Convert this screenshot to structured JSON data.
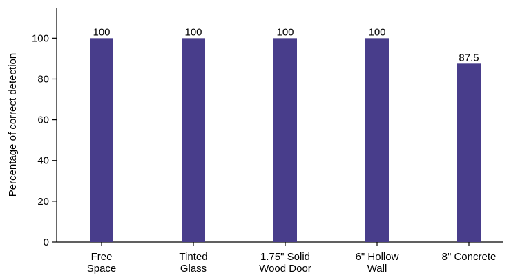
{
  "chart_data": {
    "type": "bar",
    "title": "",
    "xlabel": "",
    "ylabel": "Percentage of correct detection",
    "ylim": [
      0,
      115
    ],
    "yticks": [
      0,
      20,
      40,
      60,
      80,
      100
    ],
    "grid": false,
    "bar_color": "#483d8b",
    "categories": [
      [
        "Free",
        "Space"
      ],
      [
        "Tinted",
        "Glass"
      ],
      [
        "1.75\" Solid",
        "Wood Door"
      ],
      [
        "6\" Hollow",
        "Wall"
      ],
      [
        "8\" Concrete"
      ]
    ],
    "values": [
      100,
      100,
      100,
      100,
      87.5
    ],
    "value_labels": [
      "100",
      "100",
      "100",
      "100",
      "87.5"
    ]
  }
}
